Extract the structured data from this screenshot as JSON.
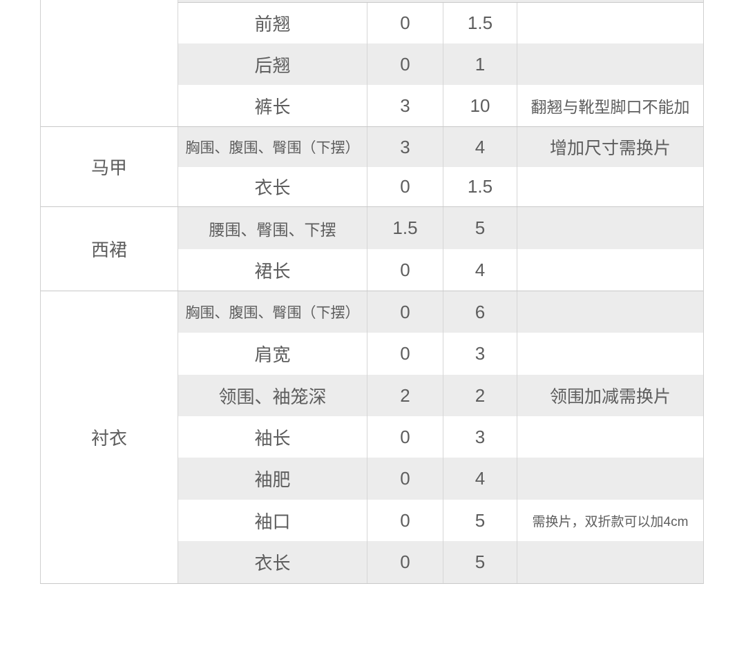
{
  "colors": {
    "row_alt_background": "#ececec",
    "section_border": "#c8c8c8",
    "column_border": "#d6d6d6",
    "text": "#5d5d5d"
  },
  "table": {
    "sections": [
      {
        "category": "",
        "partial_row_above": true,
        "rows": [
          {
            "part": "前翘",
            "v1": "0",
            "v2": "1.5",
            "note": ""
          },
          {
            "part": "后翘",
            "v1": "0",
            "v2": "1",
            "note": ""
          },
          {
            "part": "裤长",
            "v1": "3",
            "v2": "10",
            "note": "翻翘与靴型脚口不能加"
          }
        ]
      },
      {
        "category": "马甲",
        "rows": [
          {
            "part": "胸围、腹围、臀围（下摆）",
            "v1": "3",
            "v2": "4",
            "note": "增加尺寸需换片"
          },
          {
            "part": "衣长",
            "v1": "0",
            "v2": "1.5",
            "note": ""
          }
        ]
      },
      {
        "category": "西裙",
        "rows": [
          {
            "part": "腰围、臀围、下摆",
            "v1": "1.5",
            "v2": "5",
            "note": ""
          },
          {
            "part": "裙长",
            "v1": "0",
            "v2": "4",
            "note": ""
          }
        ]
      },
      {
        "category": "衬衣",
        "rows": [
          {
            "part": "胸围、腹围、臀围（下摆）",
            "v1": "0",
            "v2": "6",
            "note": ""
          },
          {
            "part": "肩宽",
            "v1": "0",
            "v2": "3",
            "note": ""
          },
          {
            "part": "领围、袖笼深",
            "v1": "2",
            "v2": "2",
            "note": "领围加减需换片"
          },
          {
            "part": "袖长",
            "v1": "0",
            "v2": "3",
            "note": ""
          },
          {
            "part": "袖肥",
            "v1": "0",
            "v2": "4",
            "note": ""
          },
          {
            "part": "袖口",
            "v1": "0",
            "v2": "5",
            "note": "需换片，双折款可以加4cm"
          },
          {
            "part": "衣长",
            "v1": "0",
            "v2": "5",
            "note": ""
          }
        ]
      }
    ]
  }
}
